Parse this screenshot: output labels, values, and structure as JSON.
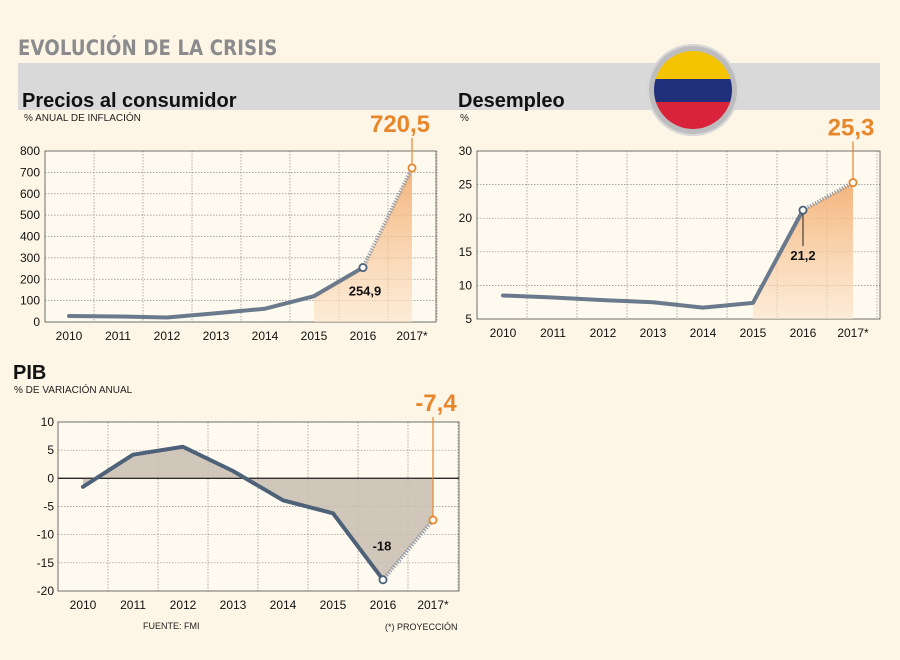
{
  "header": {
    "title": "EVOLUCIÓN DE LA CRISIS"
  },
  "flag": {
    "icon": "venezuela-flag-icon",
    "colors": [
      "#f5c400",
      "#1f2f7a",
      "#d8233a"
    ]
  },
  "footer": {
    "source": "FUENTE: FMI",
    "projection_note": "(*) PROYECCIÓN"
  },
  "chart_data": [
    {
      "id": "precios",
      "type": "line",
      "title": "Precios al consumidor",
      "subtitle": "% ANUAL DE INFLACIÓN",
      "categories": [
        "2010",
        "2011",
        "2012",
        "2013",
        "2014",
        "2015",
        "2016",
        "2017*"
      ],
      "values": [
        28,
        26,
        21,
        41,
        62,
        121,
        254.9,
        720.5
      ],
      "projected_from_index": 6,
      "ylim": [
        0,
        800
      ],
      "yticks": [
        0,
        100,
        200,
        300,
        400,
        500,
        600,
        700,
        800
      ],
      "labels": {
        "v2016": "254,9",
        "v2017": "720,5"
      },
      "line_color": "#6a7a8c",
      "highlight_color": "#e8862c"
    },
    {
      "id": "desempleo",
      "type": "line",
      "title": "Desempleo",
      "subtitle": "%",
      "categories": [
        "2010",
        "2011",
        "2012",
        "2013",
        "2014",
        "2015",
        "2016",
        "2017*"
      ],
      "values": [
        8.5,
        8.2,
        7.8,
        7.5,
        6.7,
        7.4,
        21.2,
        25.3
      ],
      "projected_from_index": 6,
      "ylim": [
        5,
        30
      ],
      "yticks": [
        5,
        10,
        15,
        20,
        25,
        30
      ],
      "labels": {
        "v2016": "21,2",
        "v2017": "25,3"
      },
      "line_color": "#6a7a8c",
      "highlight_color": "#e8862c"
    },
    {
      "id": "pib",
      "type": "line",
      "title": "PIB",
      "subtitle": "% DE VARIACIÓN ANUAL",
      "categories": [
        "2010",
        "2011",
        "2012",
        "2013",
        "2014",
        "2015",
        "2016",
        "2017*"
      ],
      "values": [
        -1.5,
        4.2,
        5.6,
        1.3,
        -3.9,
        -6.2,
        -18,
        -7.4
      ],
      "projected_from_index": 6,
      "ylim": [
        -20,
        10
      ],
      "yticks": [
        -20,
        -15,
        -10,
        -5,
        0,
        5,
        10
      ],
      "labels": {
        "v2016": "-18",
        "v2017": "-7,4"
      },
      "line_color": "#4d6278",
      "highlight_color": "#e8862c"
    }
  ]
}
